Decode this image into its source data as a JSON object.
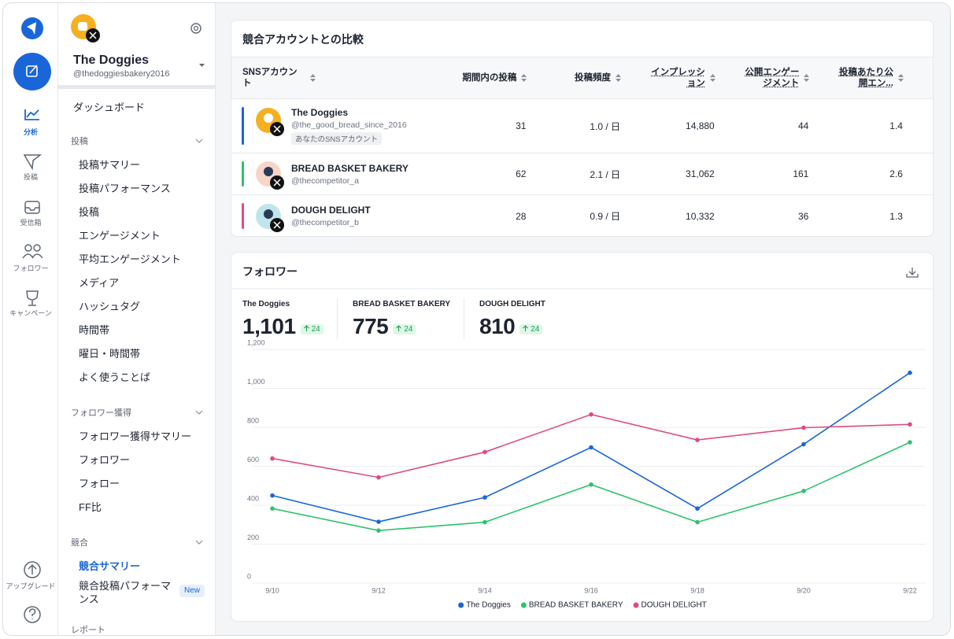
{
  "rail": {
    "items": [
      "分析",
      "投稿",
      "受信箱",
      "フォロワー",
      "キャンペーン"
    ],
    "upgrade": "アップグレード"
  },
  "sidebar": {
    "account_name": "The Doggies",
    "account_handle": "@thedoggiesbakery2016",
    "dashboard": "ダッシュボード",
    "sections": [
      {
        "title": "投稿",
        "items": [
          "投稿サマリー",
          "投稿パフォーマンス",
          "投稿",
          "エンゲージメント",
          "平均エンゲージメント",
          "メディア",
          "ハッシュタグ",
          "時間帯",
          "曜日・時間帯",
          "よく使うことば"
        ]
      },
      {
        "title": "フォロワー獲得",
        "items": [
          "フォロワー獲得サマリー",
          "フォロワー",
          "フォロー",
          "FF比"
        ]
      },
      {
        "title": "競合",
        "active_index": 0,
        "items": [
          "競合サマリー",
          {
            "label": "競合投稿パフォーマンス",
            "badge": "New"
          }
        ]
      },
      {
        "title": "レポート",
        "items": []
      }
    ]
  },
  "table": {
    "title": "競合アカウントとの比較",
    "headers": [
      "SNSアカウント",
      "期間内の投稿",
      "投稿頻度",
      "インプレッション",
      "公開エンゲージメント",
      "投稿あたり公開エン..."
    ],
    "rows": [
      {
        "name": "The Doggies",
        "handle": "@the_good_bread_since_2016",
        "tag": "あなたのSNSアカウント",
        "color": "#1a66d9",
        "cells": [
          "31",
          "1.0 / 日",
          "14,880",
          "44",
          "1.4"
        ]
      },
      {
        "name": "BREAD BASKET BAKERY",
        "handle": "@thecompetitor_a",
        "color": "#2cc36b",
        "cells": [
          "62",
          "2.1 / 日",
          "31,062",
          "161",
          "2.6"
        ]
      },
      {
        "name": "DOUGH DELIGHT",
        "handle": "@thecompetitor_b",
        "color": "#de4b86",
        "cells": [
          "28",
          "0.9 / 日",
          "10,332",
          "36",
          "1.3"
        ]
      }
    ]
  },
  "followers": {
    "title": "フォロワー",
    "stats": [
      {
        "name": "The Doggies",
        "value": "1,101",
        "change": "24"
      },
      {
        "name": "BREAD BASKET BAKERY",
        "value": "775",
        "change": "24"
      },
      {
        "name": "DOUGH DELIGHT",
        "value": "810",
        "change": "24"
      }
    ]
  },
  "chart_data": {
    "type": "line",
    "categories": [
      "9/10",
      "9/12",
      "9/14",
      "9/16",
      "9/18",
      "9/20",
      "9/22"
    ],
    "series": [
      {
        "name": "The Doggies",
        "color": "#1a66d9",
        "values": [
          450,
          315,
          440,
          697,
          383,
          713,
          1080
        ]
      },
      {
        "name": "BREAD BASKET BAKERY",
        "color": "#2cc36b",
        "values": [
          383,
          270,
          313,
          506,
          313,
          473,
          723
        ]
      },
      {
        "name": "DOUGH DELIGHT",
        "color": "#de4b86",
        "values": [
          640,
          543,
          673,
          866,
          735,
          798,
          815
        ]
      }
    ],
    "ylim": [
      0,
      1200
    ],
    "yticks": [
      0,
      200,
      400,
      600,
      800,
      {
        "value": 1000,
        "label": "1,000"
      },
      {
        "value": 1200,
        "label": "1,200"
      }
    ],
    "grid": true,
    "legend": "bottom"
  }
}
